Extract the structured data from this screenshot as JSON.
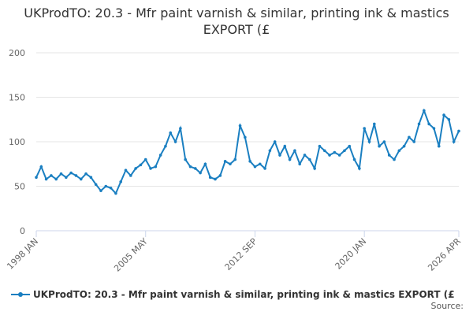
{
  "chart_data": {
    "type": "line",
    "title": "UKProdTO: 20.3 - Mfr paint varnish & similar, printing ink & mastics EXPORT (£",
    "categories": [
      "1998 JAN",
      null,
      null,
      null,
      null,
      null,
      null,
      null,
      null,
      null,
      null,
      null,
      null,
      null,
      null,
      null,
      null,
      null,
      null,
      null,
      null,
      null,
      "2005 MAY",
      null,
      null,
      null,
      null,
      null,
      null,
      null,
      null,
      null,
      null,
      null,
      null,
      null,
      null,
      null,
      null,
      null,
      null,
      null,
      null,
      null,
      "2012 SEP",
      null,
      null,
      null,
      null,
      null,
      null,
      null,
      null,
      null,
      null,
      null,
      null,
      null,
      null,
      null,
      null,
      null,
      null,
      null,
      null,
      null,
      "2020 JAN",
      null,
      null,
      null,
      null,
      null,
      null,
      null,
      null,
      null,
      null,
      null,
      null,
      null,
      null,
      null,
      null,
      null,
      null,
      "2026 APR"
    ],
    "series": [
      {
        "name": "UKProdTO: 20.3 - Mfr paint varnish & similar, printing ink & mastics EXPORT (£",
        "color": "#1a7fc1",
        "values": [
          60,
          72,
          58,
          62,
          58,
          64,
          60,
          65,
          62,
          58,
          64,
          60,
          52,
          45,
          50,
          48,
          42,
          55,
          68,
          62,
          70,
          74,
          80,
          70,
          72,
          85,
          95,
          110,
          100,
          115,
          80,
          72,
          70,
          65,
          75,
          60,
          58,
          62,
          78,
          75,
          80,
          118,
          105,
          78,
          72,
          75,
          70,
          90,
          100,
          85,
          95,
          80,
          90,
          75,
          85,
          80,
          70,
          95,
          90,
          85,
          88,
          85,
          90,
          95,
          80,
          70,
          115,
          100,
          120,
          95,
          100,
          85,
          80,
          90,
          95,
          105,
          100,
          120,
          135,
          120,
          115,
          95,
          130,
          125,
          100,
          112
        ]
      }
    ],
    "ylim": [
      0,
      200
    ],
    "yticks": [
      0,
      50,
      100,
      150,
      200
    ],
    "grid": true,
    "source": "Source:"
  }
}
